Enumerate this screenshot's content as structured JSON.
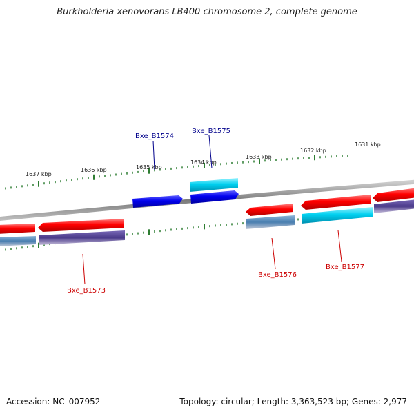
{
  "title": "Burkholderia xenovorans LB400 chromosome 2, complete genome",
  "footer": {
    "accession": "Accession: NC_007952",
    "summary": "Topology: circular; Length: 3,363,523 bp; Genes: 2,977"
  },
  "colors": {
    "backbone": "#888888",
    "tick": "#2e7d32",
    "label_forward": "#00008b",
    "label_reverse": "#cc0000",
    "gene_red": "#ff0000",
    "gene_blue": "#0000ee",
    "gene_cyan": "#00ccee",
    "gene_steel": "#4a7fb0",
    "gene_purple": "#4a3a8a"
  },
  "ruler": {
    "unit": "kbp",
    "labels": [
      "1637 kbp",
      "1636 kbp",
      "1635 kbp",
      "1634 kbp",
      "1633 kbp",
      "1632 kbp",
      "1631 kbp"
    ]
  },
  "gene_labels": [
    {
      "id": "Bxe_B1574",
      "strand": "forward"
    },
    {
      "id": "Bxe_B1575",
      "strand": "forward"
    },
    {
      "id": "Bxe_B1573",
      "strand": "reverse"
    },
    {
      "id": "Bxe_B1576",
      "strand": "reverse"
    },
    {
      "id": "Bxe_B1577",
      "strand": "reverse"
    }
  ]
}
